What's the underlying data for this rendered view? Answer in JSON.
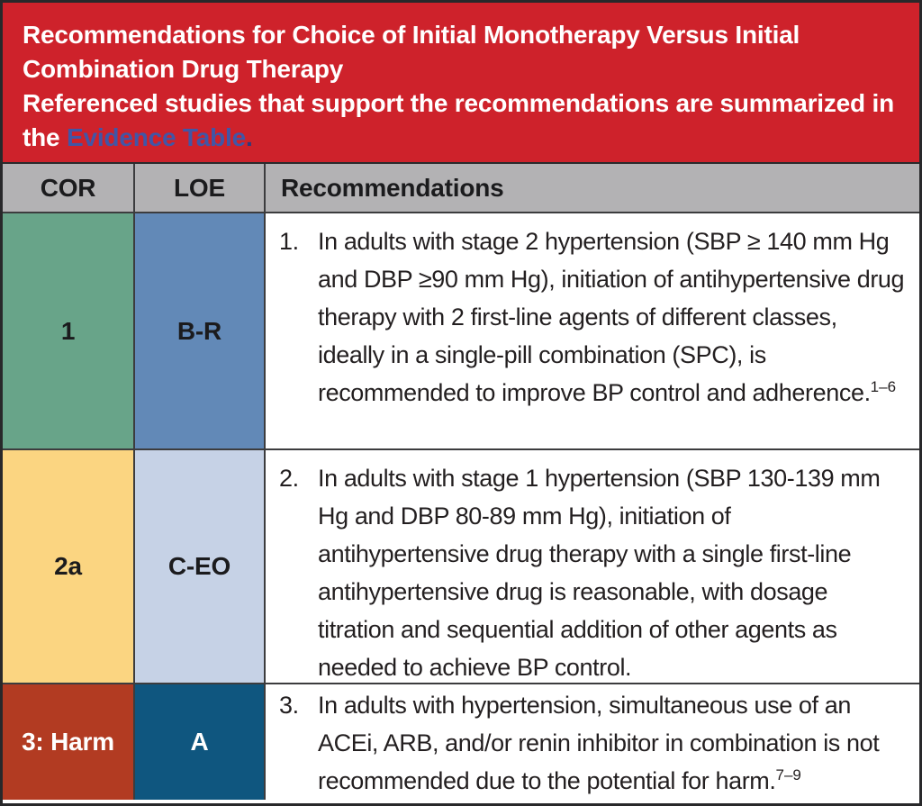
{
  "banner": {
    "title": "Recommendations for Choice of Initial Monotherapy Versus Initial Combination Drug Therapy",
    "subtitle_prefix": "Referenced studies that support the recommendations are summarized in the ",
    "link_text": "Evidence Table",
    "subtitle_suffix": ".",
    "bg_color": "#ce222b",
    "link_color": "#4156a6"
  },
  "table": {
    "headers": {
      "cor": "COR",
      "loe": "LOE",
      "recommendations": "Recommendations"
    },
    "header_bg": "#b3b2b4",
    "rows": [
      {
        "cor": "1",
        "cor_color": "#68a489",
        "loe": "B-R",
        "loe_color": "#6289b7",
        "num": "1.",
        "text": "In adults with stage 2 hypertension (SBP ≥ 140 mm Hg and DBP ≥90 mm Hg), initiation of antihypertensive drug therapy with 2 first-line agents of different classes, ideally in a single-pill combination (SPC), is recommended to improve BP control and adherence.",
        "ref": "1–6"
      },
      {
        "cor": "2a",
        "cor_color": "#fbd581",
        "loe": "C-EO",
        "loe_color": "#c6d2e6",
        "num": "2.",
        "text": "In adults with stage 1 hypertension (SBP 130-139 mm Hg and DBP 80-89 mm Hg), initiation of antihypertensive drug therapy with a single first-line antihypertensive drug is reasonable, with dosage titration and sequential addition of other agents as needed to achieve BP control.",
        "ref": ""
      },
      {
        "cor": "3: Harm",
        "cor_color": "#b23b22",
        "loe": "A",
        "loe_color": "#0f567f",
        "num": "3.",
        "text": "In adults with hypertension, simultaneous use of an ACEi, ARB, and/or renin inhibitor in combination is not recommended due to the potential for harm.",
        "ref": "7–9"
      }
    ]
  }
}
